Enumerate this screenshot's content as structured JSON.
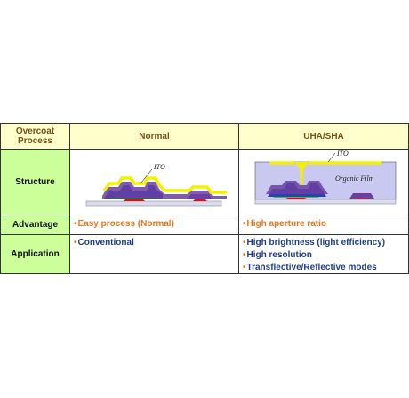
{
  "table": {
    "header": {
      "corner_line1": "Overcoat",
      "corner_line2": "Process",
      "normal": "Normal",
      "uha": "UHA/SHA"
    },
    "rows": {
      "structure": {
        "label": "Structure"
      },
      "advantage": {
        "label": "Advantage",
        "normal": "Easy process (Normal)",
        "uha": "High aperture ratio"
      },
      "application": {
        "label": "Application",
        "normal": [
          "Conventional"
        ],
        "uha": [
          "High brightness (light efficiency)",
          "High resolution",
          "Transflective/Reflective modes"
        ]
      }
    }
  },
  "diagram": {
    "normal_label": "ITO",
    "uha_label_ito": "ITO",
    "uha_label_film": "Organic Film"
  },
  "colors": {
    "label_bg": "#ccff99",
    "header_bg": "#ffffcc",
    "bullet_orange": "#e8761e",
    "text_blue": "#1f3f8f",
    "ito_yellow": "#f2f200",
    "metal_blue": "#2e3fb5",
    "metal_purple": "#6a3fa0",
    "green_layer": "#33cc33",
    "red_layer": "#e01010",
    "organic_film": "#c8c8f0"
  }
}
